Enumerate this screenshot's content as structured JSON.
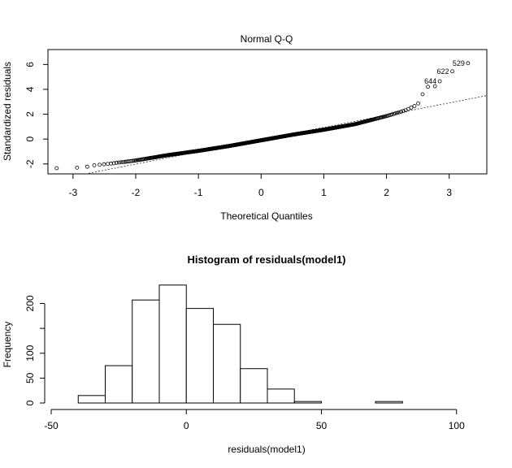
{
  "chart_data": [
    {
      "type": "scatter",
      "title": "Normal Q-Q",
      "xlabel": "Theoretical Quantiles",
      "ylabel": "Standardized residuals",
      "xlim": [
        -3.4,
        3.6
      ],
      "ylim": [
        -2.8,
        7.2
      ],
      "xticks": [
        -3,
        -2,
        -1,
        0,
        1,
        2,
        3
      ],
      "yticks": [
        -2,
        0,
        2,
        4,
        6
      ],
      "grid": false,
      "reference_line": {
        "style": "dotted",
        "points": [
          [
            -2.8,
            -2.8
          ],
          [
            3.6,
            3.5
          ]
        ]
      },
      "n_points": 900,
      "points_sample": [
        [
          -3.3,
          -2.35
        ],
        [
          -3.0,
          -2.3
        ],
        [
          -2.85,
          -2.3
        ],
        [
          -2.75,
          -2.2
        ],
        [
          -2.65,
          -2.1
        ],
        [
          -2.55,
          -2.05
        ],
        [
          -2.45,
          -2.0
        ],
        [
          -2.35,
          -1.95
        ],
        [
          -2.3,
          -1.9
        ],
        [
          -2.2,
          -1.85
        ],
        [
          -2.0,
          -1.72
        ],
        [
          -1.5,
          -1.3
        ],
        [
          -1.0,
          -0.95
        ],
        [
          -0.5,
          -0.55
        ],
        [
          0.0,
          -0.1
        ],
        [
          0.5,
          0.35
        ],
        [
          1.0,
          0.75
        ],
        [
          1.5,
          1.2
        ],
        [
          2.0,
          1.85
        ],
        [
          2.3,
          2.3
        ],
        [
          2.4,
          2.55
        ],
        [
          2.5,
          2.8
        ],
        [
          2.55,
          3.4
        ],
        [
          2.65,
          4.2
        ],
        [
          2.75,
          4.25
        ]
      ],
      "labeled_points": [
        {
          "label": "529",
          "x": 3.3,
          "y": 6.1
        },
        {
          "label": "622",
          "x": 3.05,
          "y": 5.45
        },
        {
          "label": "644",
          "x": 2.85,
          "y": 4.65
        }
      ]
    },
    {
      "type": "bar",
      "subtype": "histogram",
      "title": "Histogram of residuals(model1)",
      "xlabel": "residuals(model1)",
      "ylabel": "Frequency",
      "bin_width": 10,
      "bins": [
        {
          "from": -50,
          "to": -40,
          "count": 0
        },
        {
          "from": -40,
          "to": -30,
          "count": 15
        },
        {
          "from": -30,
          "to": -20,
          "count": 75
        },
        {
          "from": -20,
          "to": -10,
          "count": 207
        },
        {
          "from": -10,
          "to": 0,
          "count": 237
        },
        {
          "from": 0,
          "to": 10,
          "count": 190
        },
        {
          "from": 10,
          "to": 20,
          "count": 158
        },
        {
          "from": 20,
          "to": 30,
          "count": 69
        },
        {
          "from": 30,
          "to": 40,
          "count": 28
        },
        {
          "from": 40,
          "to": 50,
          "count": 3
        },
        {
          "from": 50,
          "to": 60,
          "count": 0
        },
        {
          "from": 60,
          "to": 70,
          "count": 0
        },
        {
          "from": 70,
          "to": 80,
          "count": 3
        },
        {
          "from": 80,
          "to": 90,
          "count": 0
        },
        {
          "from": 90,
          "to": 100,
          "count": 0
        },
        {
          "from": 100,
          "to": 110,
          "count": 0
        }
      ],
      "xlim": [
        -50,
        110
      ],
      "ylim": [
        0,
        240
      ],
      "xticks": [
        -50,
        0,
        50,
        100
      ],
      "yticks": [
        0,
        50,
        100,
        200
      ]
    }
  ]
}
